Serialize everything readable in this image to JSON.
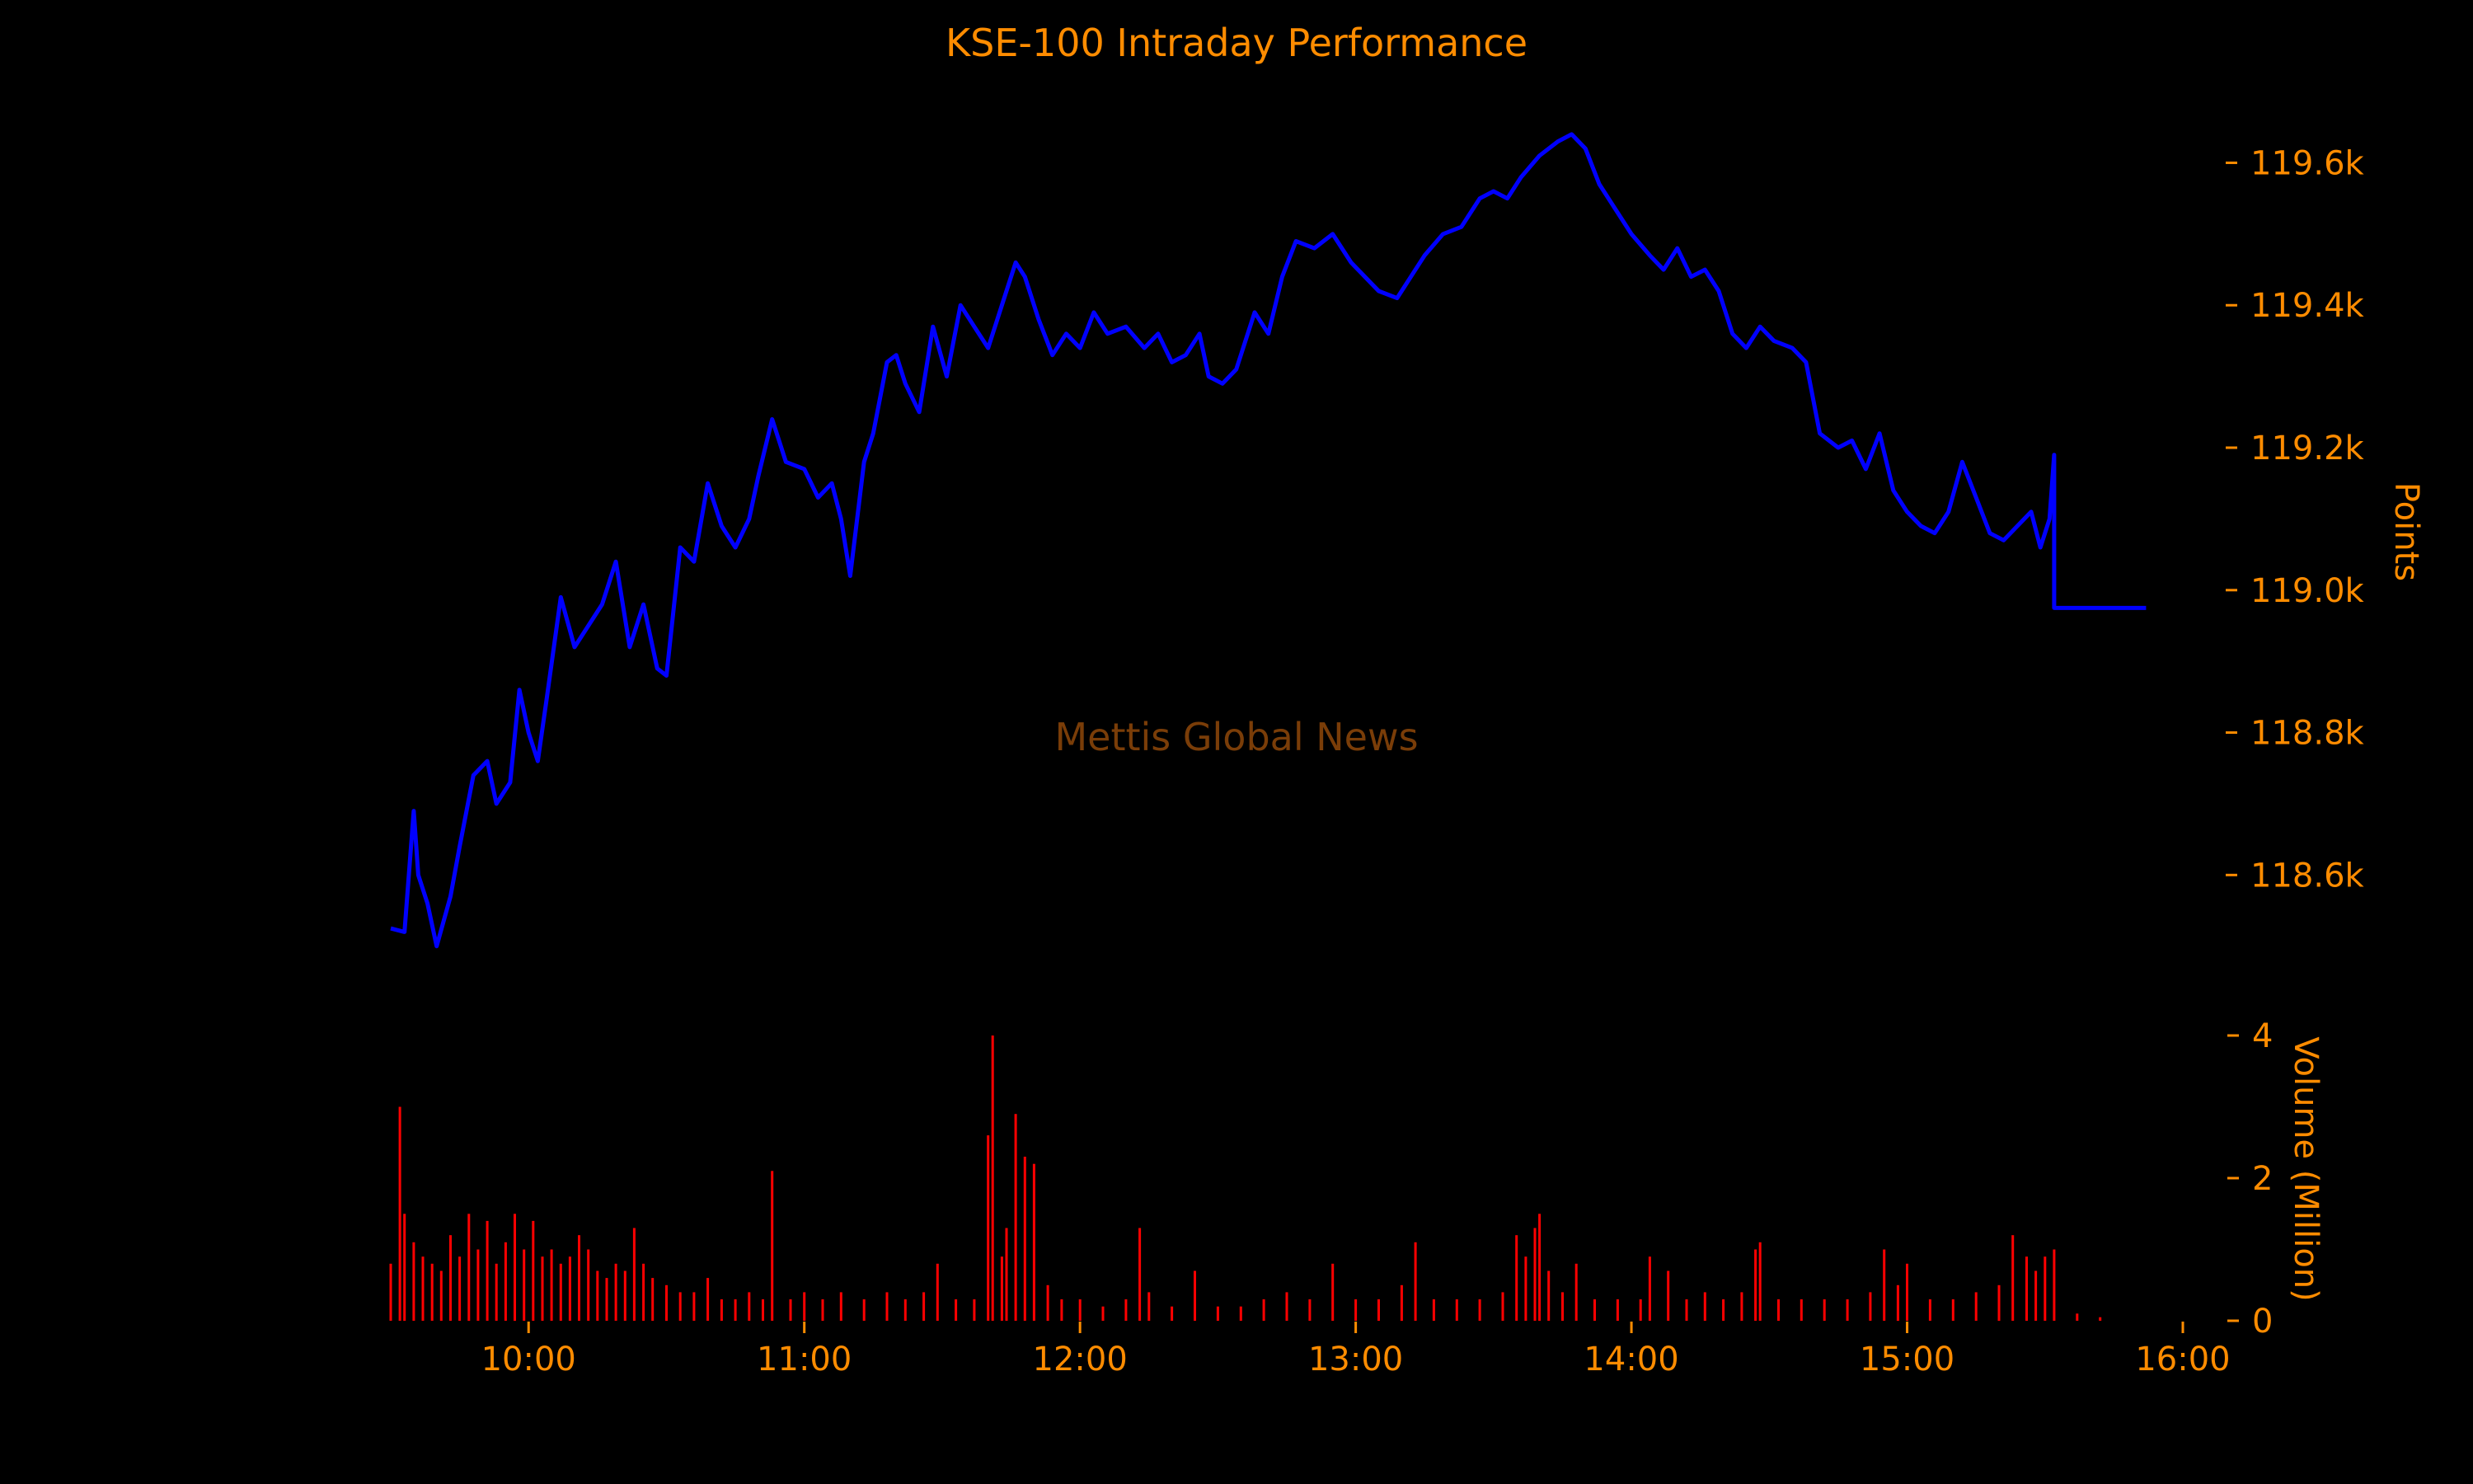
{
  "chart_data": {
    "type": "line",
    "title": "KSE-100 Intraday Performance",
    "watermark": "Mettis Global News",
    "x_tick_labels": [
      "10:00",
      "11:00",
      "12:00",
      "13:00",
      "14:00",
      "15:00",
      "16:00"
    ],
    "x_range": [
      "09:30",
      "16:00"
    ],
    "price": {
      "ylabel": "Points",
      "ylim": [
        118480,
        119670
      ],
      "tick_values": [
        118600,
        118800,
        119000,
        119200,
        119400,
        119600
      ],
      "tick_labels": [
        "118.6k",
        "118.8k",
        "119.0k",
        "119.2k",
        "119.4k",
        "119.6k"
      ],
      "color": "#0000ff",
      "points": [
        [
          "09:30",
          118525
        ],
        [
          "09:33",
          118520
        ],
        [
          "09:35",
          118690
        ],
        [
          "09:36",
          118600
        ],
        [
          "09:38",
          118560
        ],
        [
          "09:40",
          118500
        ],
        [
          "09:43",
          118570
        ],
        [
          "09:45",
          118640
        ],
        [
          "09:48",
          118740
        ],
        [
          "09:51",
          118760
        ],
        [
          "09:53",
          118700
        ],
        [
          "09:56",
          118730
        ],
        [
          "09:58",
          118860
        ],
        [
          "10:00",
          118800
        ],
        [
          "10:02",
          118760
        ],
        [
          "10:04",
          118850
        ],
        [
          "10:07",
          118990
        ],
        [
          "10:10",
          118920
        ],
        [
          "10:13",
          118950
        ],
        [
          "10:16",
          118980
        ],
        [
          "10:19",
          119040
        ],
        [
          "10:22",
          118920
        ],
        [
          "10:25",
          118980
        ],
        [
          "10:28",
          118890
        ],
        [
          "10:30",
          118880
        ],
        [
          "10:33",
          119060
        ],
        [
          "10:36",
          119040
        ],
        [
          "10:39",
          119150
        ],
        [
          "10:42",
          119090
        ],
        [
          "10:45",
          119060
        ],
        [
          "10:48",
          119100
        ],
        [
          "10:50",
          119160
        ],
        [
          "10:53",
          119240
        ],
        [
          "10:56",
          119180
        ],
        [
          "11:00",
          119170
        ],
        [
          "11:03",
          119130
        ],
        [
          "11:06",
          119150
        ],
        [
          "11:08",
          119100
        ],
        [
          "11:10",
          119020
        ],
        [
          "11:13",
          119180
        ],
        [
          "11:15",
          119220
        ],
        [
          "11:18",
          119320
        ],
        [
          "11:20",
          119330
        ],
        [
          "11:22",
          119290
        ],
        [
          "11:25",
          119250
        ],
        [
          "11:28",
          119370
        ],
        [
          "11:31",
          119300
        ],
        [
          "11:34",
          119400
        ],
        [
          "11:37",
          119370
        ],
        [
          "11:40",
          119340
        ],
        [
          "11:43",
          119400
        ],
        [
          "11:46",
          119460
        ],
        [
          "11:48",
          119440
        ],
        [
          "11:51",
          119380
        ],
        [
          "11:54",
          119330
        ],
        [
          "11:57",
          119360
        ],
        [
          "12:00",
          119340
        ],
        [
          "12:03",
          119390
        ],
        [
          "12:06",
          119360
        ],
        [
          "12:10",
          119370
        ],
        [
          "12:14",
          119340
        ],
        [
          "12:17",
          119360
        ],
        [
          "12:20",
          119320
        ],
        [
          "12:23",
          119330
        ],
        [
          "12:26",
          119360
        ],
        [
          "12:28",
          119300
        ],
        [
          "12:31",
          119290
        ],
        [
          "12:34",
          119310
        ],
        [
          "12:38",
          119390
        ],
        [
          "12:41",
          119360
        ],
        [
          "12:44",
          119440
        ],
        [
          "12:47",
          119490
        ],
        [
          "12:51",
          119480
        ],
        [
          "12:55",
          119500
        ],
        [
          "12:59",
          119460
        ],
        [
          "13:02",
          119440
        ],
        [
          "13:05",
          119420
        ],
        [
          "13:09",
          119410
        ],
        [
          "13:12",
          119440
        ],
        [
          "13:15",
          119470
        ],
        [
          "13:19",
          119500
        ],
        [
          "13:23",
          119510
        ],
        [
          "13:27",
          119550
        ],
        [
          "13:30",
          119560
        ],
        [
          "13:33",
          119550
        ],
        [
          "13:36",
          119580
        ],
        [
          "13:40",
          119610
        ],
        [
          "13:44",
          119630
        ],
        [
          "13:47",
          119640
        ],
        [
          "13:50",
          119620
        ],
        [
          "13:53",
          119570
        ],
        [
          "13:56",
          119540
        ],
        [
          "14:00",
          119500
        ],
        [
          "14:04",
          119470
        ],
        [
          "14:07",
          119450
        ],
        [
          "14:10",
          119480
        ],
        [
          "14:13",
          119440
        ],
        [
          "14:16",
          119450
        ],
        [
          "14:19",
          119420
        ],
        [
          "14:22",
          119360
        ],
        [
          "14:25",
          119340
        ],
        [
          "14:28",
          119370
        ],
        [
          "14:31",
          119350
        ],
        [
          "14:35",
          119340
        ],
        [
          "14:38",
          119320
        ],
        [
          "14:41",
          119220
        ],
        [
          "14:45",
          119200
        ],
        [
          "14:48",
          119210
        ],
        [
          "14:51",
          119170
        ],
        [
          "14:54",
          119220
        ],
        [
          "14:57",
          119140
        ],
        [
          "15:00",
          119110
        ],
        [
          "15:03",
          119090
        ],
        [
          "15:06",
          119080
        ],
        [
          "15:09",
          119110
        ],
        [
          "15:12",
          119180
        ],
        [
          "15:15",
          119130
        ],
        [
          "15:18",
          119080
        ],
        [
          "15:21",
          119070
        ],
        [
          "15:24",
          119090
        ],
        [
          "15:27",
          119110
        ],
        [
          "15:29",
          119060
        ],
        [
          "15:31",
          119100
        ],
        [
          "15:32",
          119190
        ],
        [
          "15:32",
          118975
        ],
        [
          "15:52",
          118975
        ]
      ]
    },
    "volume": {
      "ylabel": "Volume (Million)",
      "ylim": [
        0,
        4
      ],
      "tick_values": [
        0,
        2,
        4
      ],
      "tick_labels": [
        "0",
        "2",
        "4"
      ],
      "color": "#ff0000",
      "spikes": [
        [
          "09:30",
          0.8
        ],
        [
          "09:32",
          3.0
        ],
        [
          "09:33",
          1.5
        ],
        [
          "09:35",
          1.1
        ],
        [
          "09:37",
          0.9
        ],
        [
          "09:39",
          0.8
        ],
        [
          "09:41",
          0.7
        ],
        [
          "09:43",
          1.2
        ],
        [
          "09:45",
          0.9
        ],
        [
          "09:47",
          1.5
        ],
        [
          "09:49",
          1.0
        ],
        [
          "09:51",
          1.4
        ],
        [
          "09:53",
          0.8
        ],
        [
          "09:55",
          1.1
        ],
        [
          "09:57",
          1.5
        ],
        [
          "09:59",
          1.0
        ],
        [
          "10:01",
          1.4
        ],
        [
          "10:03",
          0.9
        ],
        [
          "10:05",
          1.0
        ],
        [
          "10:07",
          0.8
        ],
        [
          "10:09",
          0.9
        ],
        [
          "10:11",
          1.2
        ],
        [
          "10:13",
          1.0
        ],
        [
          "10:15",
          0.7
        ],
        [
          "10:17",
          0.6
        ],
        [
          "10:19",
          0.8
        ],
        [
          "10:21",
          0.7
        ],
        [
          "10:23",
          1.3
        ],
        [
          "10:25",
          0.8
        ],
        [
          "10:27",
          0.6
        ],
        [
          "10:30",
          0.5
        ],
        [
          "10:33",
          0.4
        ],
        [
          "10:36",
          0.4
        ],
        [
          "10:39",
          0.6
        ],
        [
          "10:42",
          0.3
        ],
        [
          "10:45",
          0.3
        ],
        [
          "10:48",
          0.4
        ],
        [
          "10:51",
          0.3
        ],
        [
          "10:53",
          2.1
        ],
        [
          "10:57",
          0.3
        ],
        [
          "11:00",
          0.4
        ],
        [
          "11:04",
          0.3
        ],
        [
          "11:08",
          0.4
        ],
        [
          "11:13",
          0.3
        ],
        [
          "11:18",
          0.4
        ],
        [
          "11:22",
          0.3
        ],
        [
          "11:26",
          0.4
        ],
        [
          "11:29",
          0.8
        ],
        [
          "11:33",
          0.3
        ],
        [
          "11:37",
          0.3
        ],
        [
          "11:40",
          2.6
        ],
        [
          "11:41",
          4.0
        ],
        [
          "11:43",
          0.9
        ],
        [
          "11:44",
          1.3
        ],
        [
          "11:46",
          2.9
        ],
        [
          "11:48",
          2.3
        ],
        [
          "11:50",
          2.2
        ],
        [
          "11:53",
          0.5
        ],
        [
          "11:56",
          0.3
        ],
        [
          "12:00",
          0.3
        ],
        [
          "12:05",
          0.2
        ],
        [
          "12:10",
          0.3
        ],
        [
          "12:13",
          1.3
        ],
        [
          "12:15",
          0.4
        ],
        [
          "12:20",
          0.2
        ],
        [
          "12:25",
          0.7
        ],
        [
          "12:30",
          0.2
        ],
        [
          "12:35",
          0.2
        ],
        [
          "12:40",
          0.3
        ],
        [
          "12:45",
          0.4
        ],
        [
          "12:50",
          0.3
        ],
        [
          "12:55",
          0.8
        ],
        [
          "13:00",
          0.3
        ],
        [
          "13:05",
          0.3
        ],
        [
          "13:10",
          0.5
        ],
        [
          "13:13",
          1.1
        ],
        [
          "13:17",
          0.3
        ],
        [
          "13:22",
          0.3
        ],
        [
          "13:27",
          0.3
        ],
        [
          "13:32",
          0.4
        ],
        [
          "13:35",
          1.2
        ],
        [
          "13:37",
          0.9
        ],
        [
          "13:39",
          1.3
        ],
        [
          "13:40",
          1.5
        ],
        [
          "13:42",
          0.7
        ],
        [
          "13:45",
          0.4
        ],
        [
          "13:48",
          0.8
        ],
        [
          "13:52",
          0.3
        ],
        [
          "13:57",
          0.3
        ],
        [
          "14:02",
          0.3
        ],
        [
          "14:04",
          0.9
        ],
        [
          "14:08",
          0.7
        ],
        [
          "14:12",
          0.3
        ],
        [
          "14:16",
          0.4
        ],
        [
          "14:20",
          0.3
        ],
        [
          "14:24",
          0.4
        ],
        [
          "14:27",
          1.0
        ],
        [
          "14:28",
          1.1
        ],
        [
          "14:32",
          0.3
        ],
        [
          "14:37",
          0.3
        ],
        [
          "14:42",
          0.3
        ],
        [
          "14:47",
          0.3
        ],
        [
          "14:52",
          0.4
        ],
        [
          "14:55",
          1.0
        ],
        [
          "14:58",
          0.5
        ],
        [
          "15:00",
          0.8
        ],
        [
          "15:05",
          0.3
        ],
        [
          "15:10",
          0.3
        ],
        [
          "15:15",
          0.4
        ],
        [
          "15:20",
          0.5
        ],
        [
          "15:23",
          1.2
        ],
        [
          "15:26",
          0.9
        ],
        [
          "15:28",
          0.7
        ],
        [
          "15:30",
          0.9
        ],
        [
          "15:32",
          1.0
        ],
        [
          "15:37",
          0.1
        ],
        [
          "15:42",
          0.05
        ]
      ]
    }
  }
}
